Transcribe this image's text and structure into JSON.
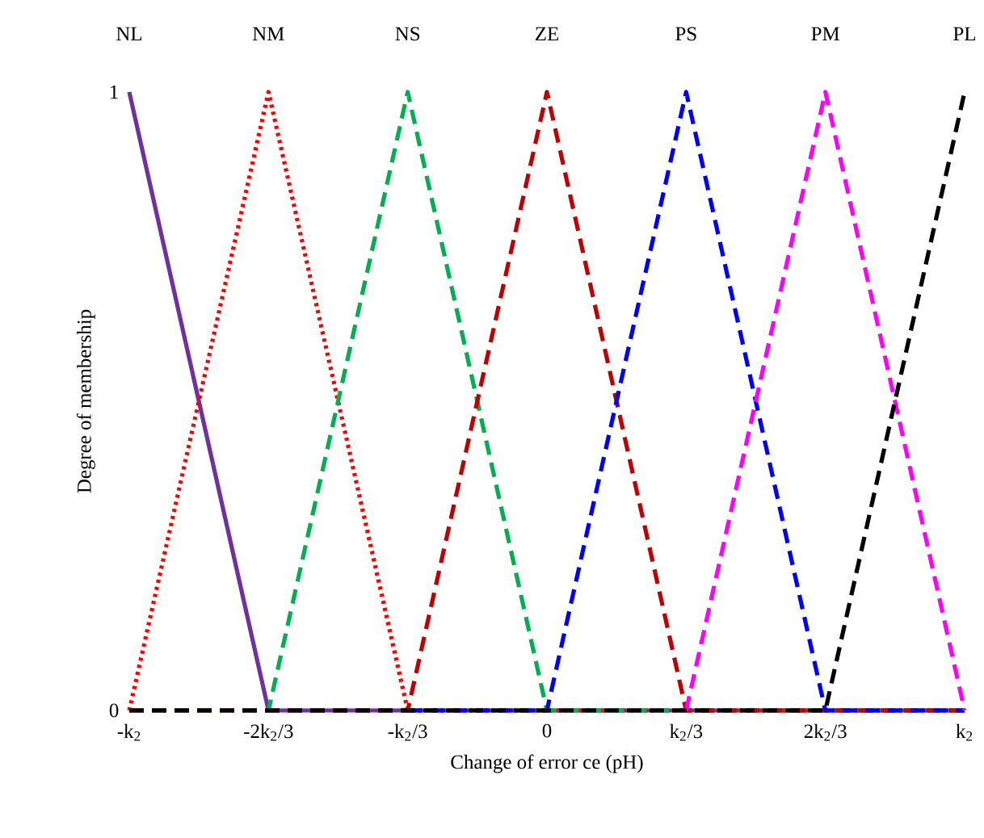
{
  "chart_data": {
    "type": "line",
    "xlabel": "Change of error ce (pH)",
    "ylabel": "Degree of membership",
    "categories": [
      "-k$_{2}$",
      "-2k$_{2}$/3",
      "-k$_{2}$/3",
      "0",
      "k$_{2}$/3",
      "2k$_{2}$/3",
      "k$_{2}$"
    ],
    "ylim": [
      0,
      1
    ],
    "yticks": [
      0,
      1
    ],
    "marker": "none",
    "series": [
      {
        "name": "NL",
        "color": "#7030a0",
        "line_style": "solid",
        "values": [
          1,
          0,
          0,
          0,
          0,
          0,
          0
        ]
      },
      {
        "name": "NM",
        "color": "#ff0000",
        "line_style": "dotted",
        "values": [
          0,
          1,
          0,
          0,
          0,
          0,
          0
        ]
      },
      {
        "name": "NS",
        "color": "#00b050",
        "line_style": "dashed",
        "values": [
          0,
          0,
          1,
          0,
          0,
          0,
          0
        ]
      },
      {
        "name": "ZE",
        "color": "#c00000",
        "line_style": "dashed",
        "values": [
          0,
          0,
          0,
          1,
          0,
          0,
          0
        ]
      },
      {
        "name": "PS",
        "color": "#0000ff",
        "line_style": "dashed",
        "values": [
          null,
          null,
          0,
          0,
          1,
          0,
          0
        ]
      },
      {
        "name": "PM",
        "color": "#ff00ff",
        "line_style": "dashed",
        "values": [
          null,
          null,
          null,
          null,
          0,
          1,
          0
        ]
      },
      {
        "name": "PL",
        "color": "#000000",
        "line_style": "dashed",
        "values": [
          0,
          0,
          0,
          0,
          0,
          0,
          1
        ]
      }
    ]
  }
}
